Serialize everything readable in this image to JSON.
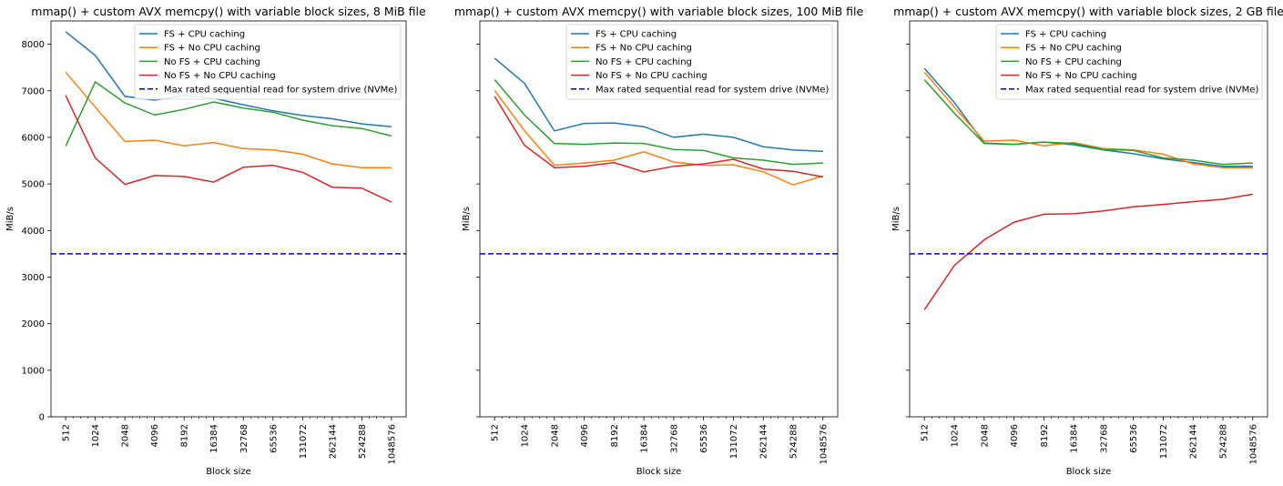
{
  "figure": {
    "background": "#ffffff",
    "series_colors": {
      "FS + CPU caching": "#1f77b4",
      "FS + No CPU caching": "#ff7f0e",
      "No FS + CPU caching": "#2ca02c",
      "No FS + No CPU caching": "#d62728"
    },
    "reference_color": "#0000cc",
    "shared_y_axis": true
  },
  "chart_data": [
    {
      "type": "line",
      "title": "mmap() + custom AVX memcpy() with variable block sizes, 8 MiB file",
      "xlabel": "Block size",
      "ylabel": "MiB/s",
      "x_scale": "log2",
      "x": [
        512,
        1024,
        2048,
        4096,
        8192,
        16384,
        32768,
        65536,
        131072,
        262144,
        524288,
        1048576
      ],
      "x_tick_labels": [
        "512",
        "1024",
        "2048",
        "4096",
        "8192",
        "16384",
        "32768",
        "65536",
        "131072",
        "262144",
        "524288",
        "1048576"
      ],
      "ylim": [
        0,
        8500
      ],
      "y_ticks": [
        0,
        1000,
        2000,
        3000,
        4000,
        5000,
        6000,
        7000,
        8000
      ],
      "grid": false,
      "legend_position": "top-right",
      "series": [
        {
          "name": "FS + CPU caching",
          "color": "#1f77b4",
          "style": "solid",
          "values": [
            8270,
            7760,
            6880,
            6800,
            6900,
            6840,
            6700,
            6570,
            6470,
            6400,
            6290,
            6230
          ]
        },
        {
          "name": "FS + No CPU caching",
          "color": "#ff7f0e",
          "style": "solid",
          "values": [
            7400,
            6650,
            5910,
            5940,
            5820,
            5890,
            5760,
            5730,
            5640,
            5430,
            5350,
            5350
          ]
        },
        {
          "name": "No FS + CPU caching",
          "color": "#2ca02c",
          "style": "solid",
          "values": [
            5810,
            7190,
            6740,
            6480,
            6600,
            6760,
            6630,
            6540,
            6370,
            6250,
            6190,
            6030
          ]
        },
        {
          "name": "No FS + No CPU caching",
          "color": "#d62728",
          "style": "solid",
          "values": [
            6900,
            5560,
            4990,
            5180,
            5160,
            5040,
            5360,
            5400,
            5250,
            4930,
            4910,
            4610
          ]
        },
        {
          "name": "Max rated sequential read for system drive (NVMe)",
          "color": "#0000cc",
          "style": "dashed",
          "constant": 3500
        }
      ]
    },
    {
      "type": "line",
      "title": "mmap() + custom AVX memcpy() with variable block sizes, 100 MiB file",
      "xlabel": "Block size",
      "ylabel": "MiB/s",
      "x_scale": "log2",
      "x": [
        512,
        1024,
        2048,
        4096,
        8192,
        16384,
        32768,
        65536,
        131072,
        262144,
        524288,
        1048576
      ],
      "x_tick_labels": [
        "512",
        "1024",
        "2048",
        "4096",
        "8192",
        "16384",
        "32768",
        "65536",
        "131072",
        "262144",
        "524288",
        "1048576"
      ],
      "ylim": [
        0,
        8500
      ],
      "grid": false,
      "legend_position": "top-right",
      "series": [
        {
          "name": "FS + CPU caching",
          "color": "#1f77b4",
          "style": "solid",
          "values": [
            7700,
            7160,
            6140,
            6300,
            6310,
            6230,
            6000,
            6070,
            6000,
            5800,
            5730,
            5700
          ]
        },
        {
          "name": "FS + No CPU caching",
          "color": "#ff7f0e",
          "style": "solid",
          "values": [
            7010,
            6140,
            5400,
            5450,
            5510,
            5690,
            5470,
            5400,
            5410,
            5260,
            4980,
            5170
          ]
        },
        {
          "name": "No FS + CPU caching",
          "color": "#2ca02c",
          "style": "solid",
          "values": [
            7240,
            6480,
            5870,
            5850,
            5880,
            5870,
            5740,
            5720,
            5560,
            5510,
            5420,
            5450
          ]
        },
        {
          "name": "No FS + No CPU caching",
          "color": "#d62728",
          "style": "solid",
          "values": [
            6880,
            5830,
            5350,
            5380,
            5460,
            5260,
            5380,
            5430,
            5530,
            5320,
            5270,
            5150
          ]
        },
        {
          "name": "Max rated sequential read for system drive (NVMe)",
          "color": "#0000cc",
          "style": "dashed",
          "constant": 3500
        }
      ]
    },
    {
      "type": "line",
      "title": "mmap() + custom AVX memcpy() with variable block sizes, 2 GB file",
      "xlabel": "Block size",
      "ylabel": "MiB/s",
      "x_scale": "log2",
      "x": [
        512,
        1024,
        2048,
        4096,
        8192,
        16384,
        32768,
        65536,
        131072,
        262144,
        524288,
        1048576
      ],
      "x_tick_labels": [
        "512",
        "1024",
        "2048",
        "4096",
        "8192",
        "16384",
        "32768",
        "65536",
        "131072",
        "262144",
        "524288",
        "1048576"
      ],
      "ylim": [
        0,
        8500
      ],
      "grid": false,
      "legend_position": "top-right",
      "series": [
        {
          "name": "FS + CPU caching",
          "color": "#1f77b4",
          "style": "solid",
          "values": [
            7480,
            6750,
            5880,
            5850,
            5900,
            5840,
            5730,
            5650,
            5540,
            5460,
            5380,
            5380
          ]
        },
        {
          "name": "FS + No CPU caching",
          "color": "#ff7f0e",
          "style": "solid",
          "values": [
            7400,
            6650,
            5920,
            5940,
            5820,
            5890,
            5760,
            5730,
            5640,
            5430,
            5350,
            5350
          ]
        },
        {
          "name": "No FS + CPU caching",
          "color": "#2ca02c",
          "style": "solid",
          "values": [
            7240,
            6520,
            5870,
            5850,
            5900,
            5870,
            5740,
            5720,
            5560,
            5510,
            5420,
            5450
          ]
        },
        {
          "name": "No FS + No CPU caching",
          "color": "#d62728",
          "style": "solid",
          "values": [
            2300,
            3250,
            3800,
            4180,
            4350,
            4360,
            4420,
            4510,
            4560,
            4620,
            4670,
            4780
          ]
        },
        {
          "name": "Max rated sequential read for system drive (NVMe)",
          "color": "#0000cc",
          "style": "dashed",
          "constant": 3500
        }
      ]
    }
  ]
}
